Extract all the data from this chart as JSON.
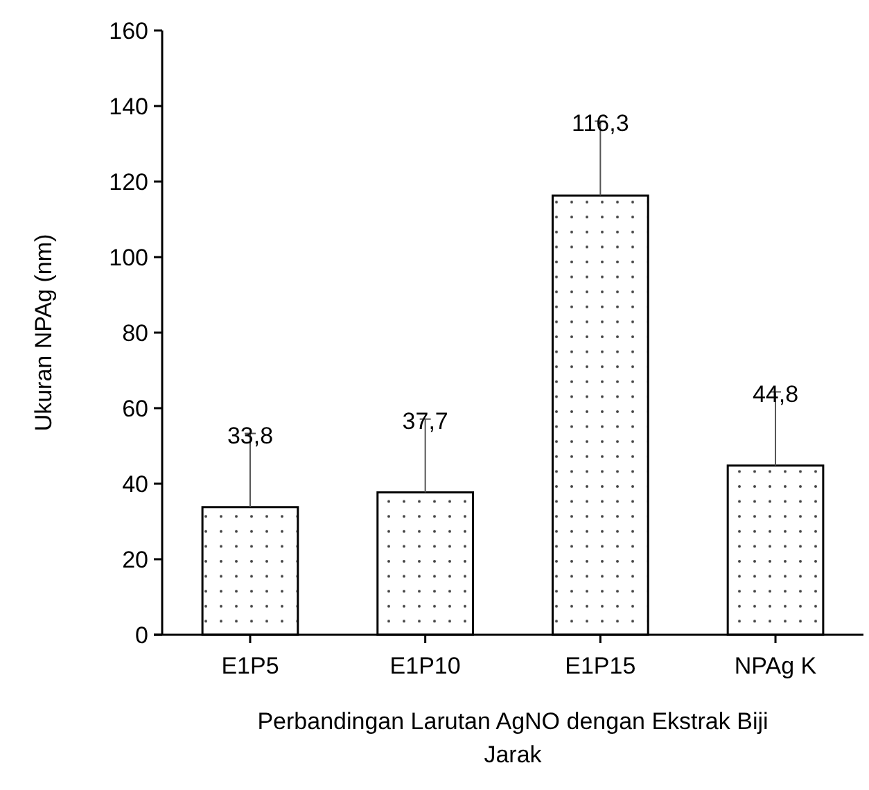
{
  "chart_data": {
    "type": "bar",
    "xlabel": "Perbandingan Larutan AgNO dengan Ekstrak Biji Jarak",
    "ylabel": "Ukuran NPAg (nm)",
    "categories": [
      "E1P5",
      "E1P10",
      "E1P15",
      "NPAg K"
    ],
    "values": [
      33.8,
      37.7,
      116.3,
      44.8
    ],
    "errors": [
      [
        33.8,
        53.3
      ],
      [
        37.7,
        57.1
      ],
      [
        116.3,
        136
      ],
      [
        44.8,
        64.3
      ]
    ],
    "value_labels": [
      "33,8",
      "37,7",
      "116,3",
      "44,8"
    ],
    "color": "#ffffff",
    "ylim": [
      0,
      160
    ],
    "yticks": [
      0,
      20,
      40,
      60,
      80,
      100,
      120,
      140,
      160
    ],
    "grid": false
  }
}
